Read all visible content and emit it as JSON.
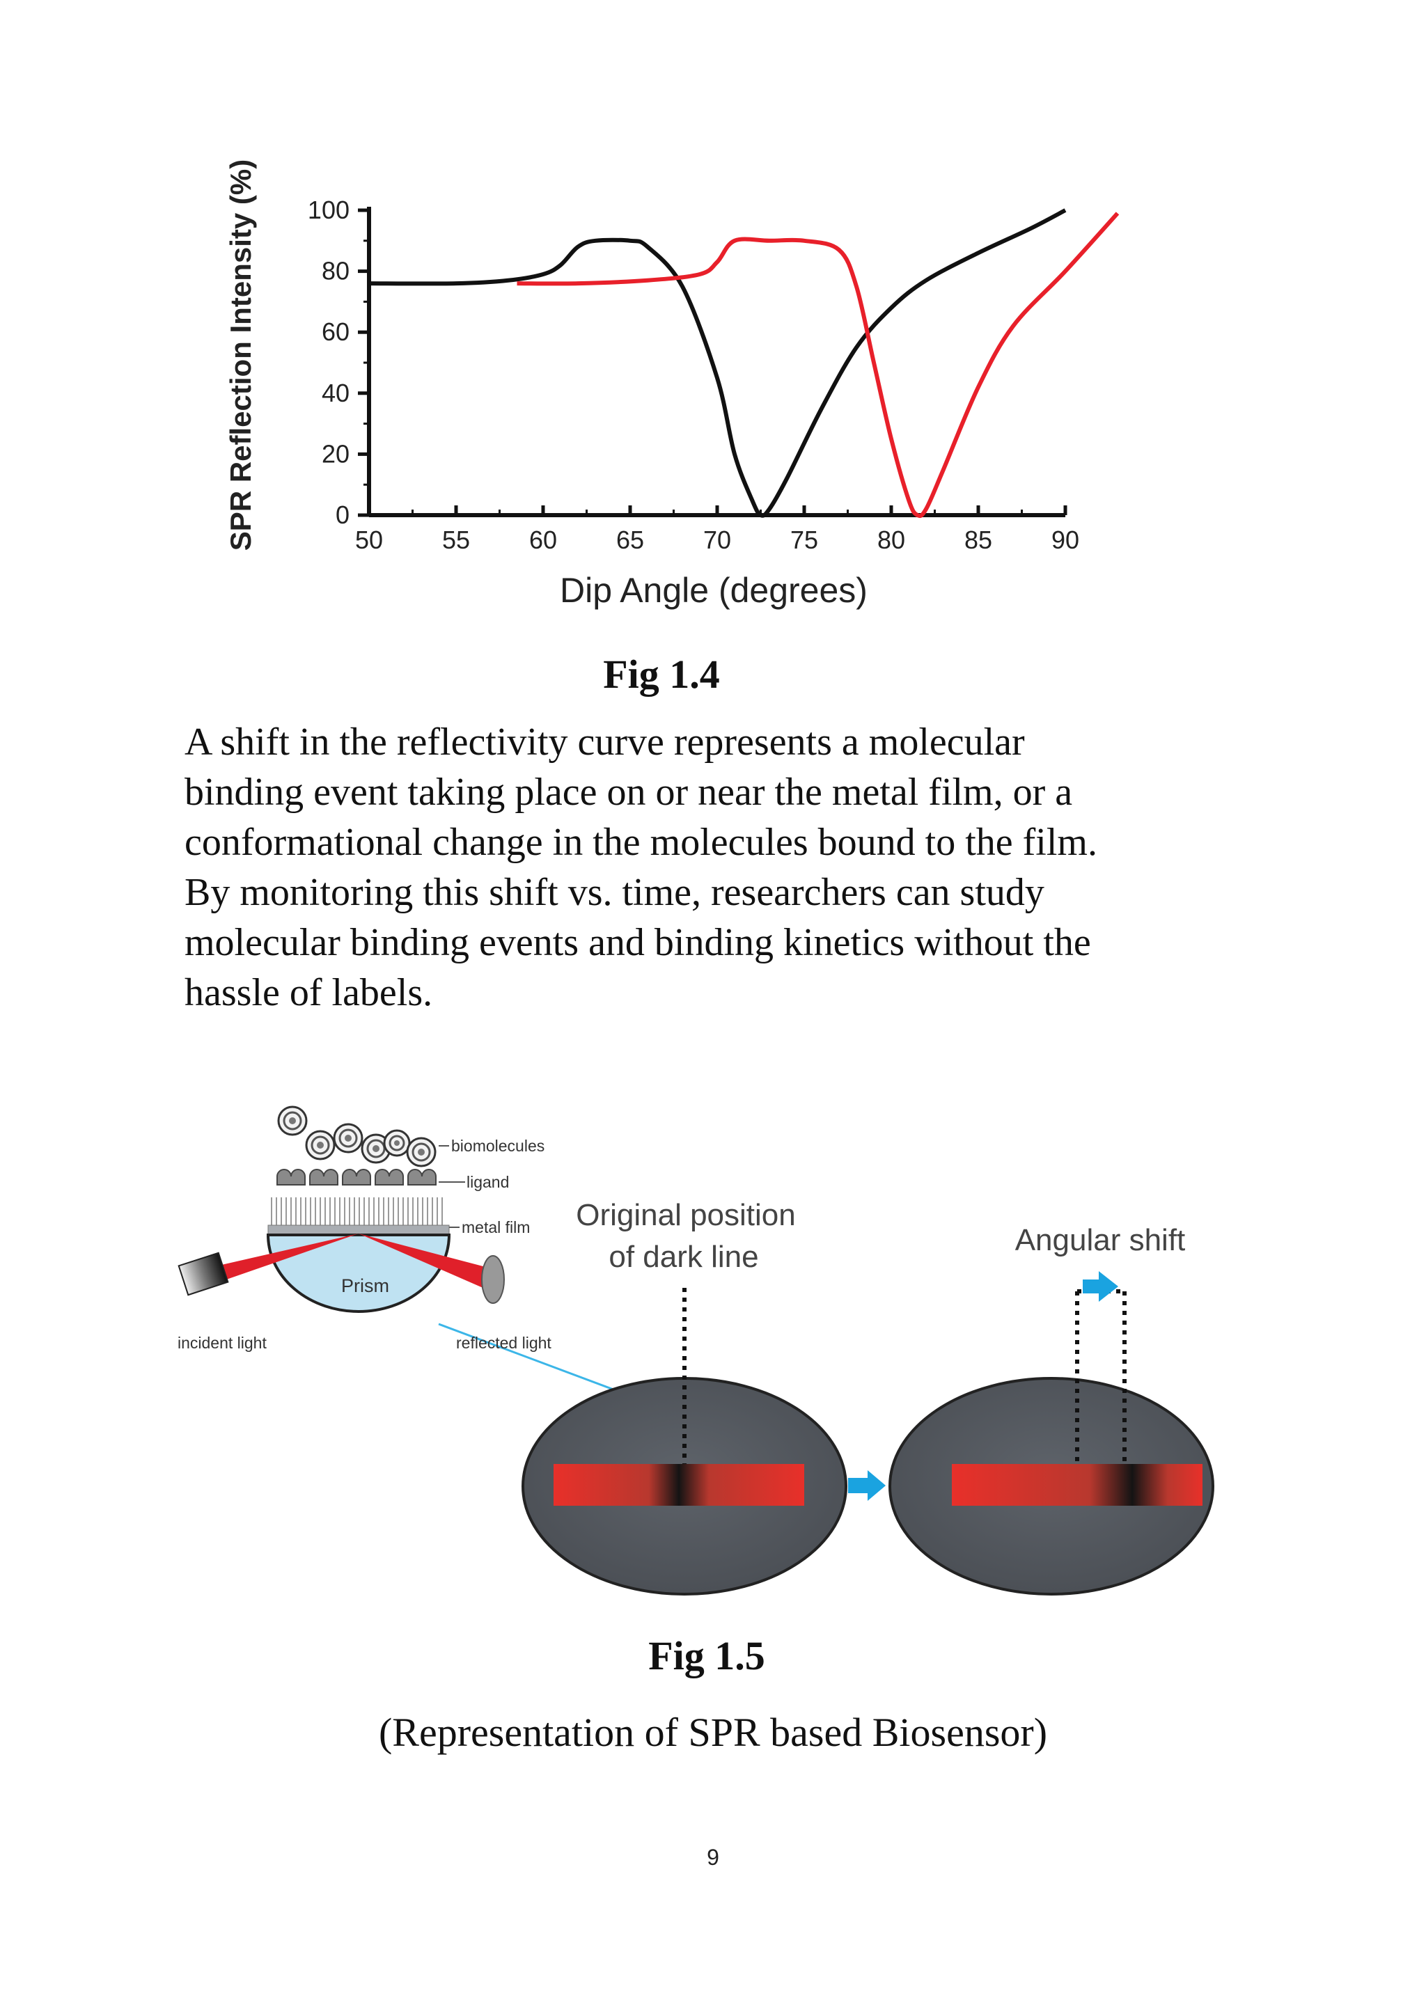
{
  "chart_data": {
    "type": "line",
    "xlabel": "Dip Angle (degrees)",
    "ylabel": "SPR Reflection Intensity (%)",
    "xlim": [
      50,
      90
    ],
    "ylim": [
      0,
      100
    ],
    "x_ticks": [
      "50",
      "55",
      "60",
      "65",
      "70",
      "75",
      "80",
      "85",
      "90"
    ],
    "y_ticks": [
      "0",
      "20",
      "40",
      "60",
      "80",
      "100"
    ],
    "grid": false,
    "series": [
      {
        "color": "#111111",
        "x": [
          50,
          55,
          58,
          60,
          61,
          62,
          63,
          65,
          66,
          68,
          70,
          71,
          72,
          72.5,
          73,
          74,
          76,
          78,
          80,
          82,
          85,
          88,
          90
        ],
        "y": [
          76,
          76,
          77,
          79,
          82,
          88,
          90,
          90,
          88,
          75,
          45,
          20,
          5,
          0,
          2,
          12,
          35,
          55,
          68,
          77,
          86,
          94,
          100
        ]
      },
      {
        "color": "#e8202a",
        "x": [
          58.5,
          62,
          66,
          69,
          70,
          71,
          73,
          75,
          77,
          78,
          79,
          80,
          81,
          81.5,
          82,
          83,
          85,
          87,
          90,
          93
        ],
        "y": [
          76,
          76,
          77,
          79,
          83,
          90,
          90,
          90,
          87,
          75,
          50,
          25,
          5,
          0,
          2,
          15,
          42,
          62,
          80,
          99
        ]
      }
    ]
  },
  "figure_14": {
    "caption": "Fig 1.4"
  },
  "paragraph": {
    "lines": [
      "A shift in the reflectivity curve represents a molecular",
      "binding event taking place on or near the metal film, or a",
      "conformational change in the molecules bound to the film.",
      "By monitoring this shift vs. time, researchers can study",
      "molecular binding events and binding kinetics without the",
      "hassle of labels."
    ]
  },
  "figure_15": {
    "labels": {
      "biomolecules": "biomolecules",
      "ligand": "ligand",
      "metal_film": "metal film",
      "prism": "Prism",
      "incident_light": "incident light",
      "reflected_light": "reflected light",
      "original_position_line1": "Original position",
      "original_position_line2": "of dark line",
      "angular_shift": "Angular shift"
    },
    "colors": {
      "beam": "#e0202a",
      "arrow": "#1aa3e0",
      "disc": "#555a60",
      "prism": "#bfe2f2"
    },
    "caption": "Fig 1.5",
    "subtitle": "(Representation of SPR based Biosensor)"
  },
  "page_number": "9"
}
